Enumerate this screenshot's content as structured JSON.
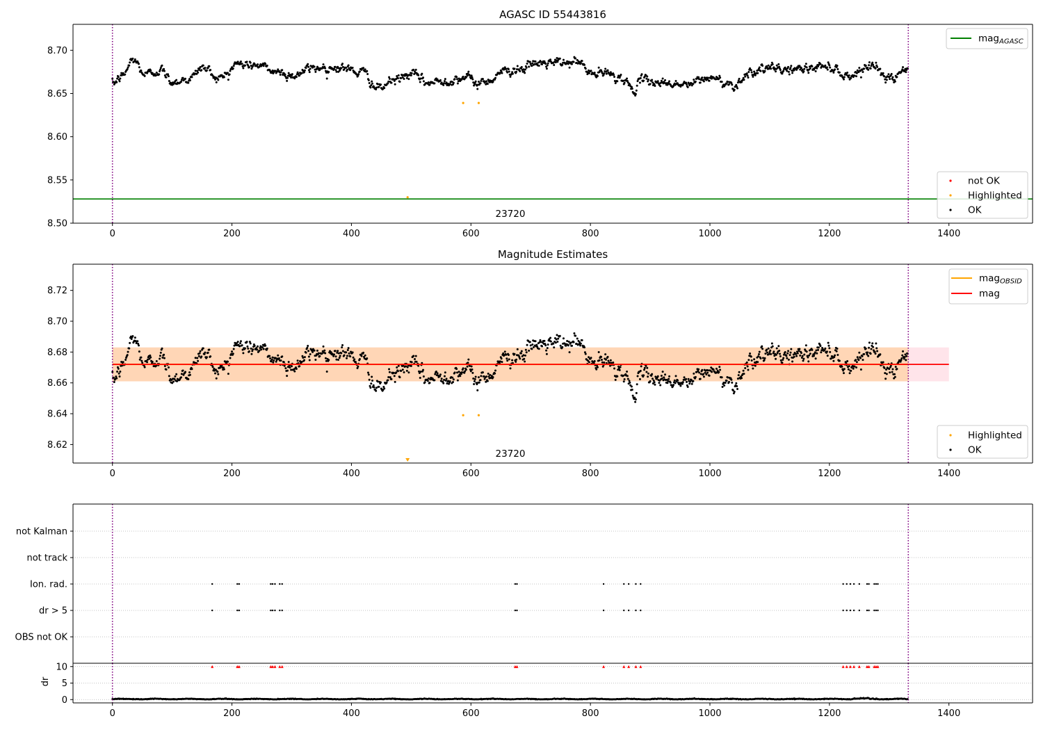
{
  "chart_data": [
    {
      "type": "scatter",
      "title": "AGASC ID 55443816",
      "xlim": [
        -66,
        1540
      ],
      "ylim": [
        8.5,
        8.73
      ],
      "xticks": [
        0,
        200,
        400,
        600,
        800,
        1000,
        1200,
        1400
      ],
      "xtick_labels": [
        "0",
        "200",
        "400",
        "600",
        "800",
        "1000",
        "1200",
        "1400"
      ],
      "yticks": [
        8.5,
        8.55,
        8.6,
        8.65,
        8.7
      ],
      "ytick_labels": [
        "8.50",
        "8.55",
        "8.60",
        "8.65",
        "8.70"
      ],
      "obs_boundaries": [
        0,
        1332
      ],
      "obs_label": {
        "text": "23720",
        "x": 666
      },
      "agasc_mag": 8.528,
      "series": [
        {
          "name": "OK",
          "color": "#000000",
          "n_points": 1332,
          "generator": "ok"
        },
        {
          "name": "Highlighted",
          "color": "#ffa500",
          "points": [
            [
              587,
              8.639
            ],
            [
              613,
              8.639
            ],
            [
              494,
              8.53
            ]
          ]
        },
        {
          "name": "not OK",
          "color": "#ff0000",
          "points": []
        }
      ],
      "legend_lines": [
        {
          "label": "mag",
          "sub": "AGASC",
          "color": "#008000"
        }
      ],
      "legend_points": [
        {
          "label": "not OK",
          "color": "#ff0000"
        },
        {
          "label": "Highlighted",
          "color": "#ffa500"
        },
        {
          "label": "OK",
          "color": "#000000"
        }
      ]
    },
    {
      "type": "scatter",
      "title": "Magnitude Estimates",
      "xlim": [
        -66,
        1540
      ],
      "ylim": [
        8.608,
        8.737
      ],
      "xticks": [
        0,
        200,
        400,
        600,
        800,
        1000,
        1200,
        1400
      ],
      "xtick_labels": [
        "0",
        "200",
        "400",
        "600",
        "800",
        "1000",
        "1200",
        "1400"
      ],
      "yticks": [
        8.62,
        8.64,
        8.66,
        8.68,
        8.7,
        8.72
      ],
      "ytick_labels": [
        "8.62",
        "8.64",
        "8.66",
        "8.68",
        "8.70",
        "8.72"
      ],
      "obs_boundaries": [
        0,
        1332
      ],
      "obs_label": {
        "text": "23720",
        "x": 666
      },
      "mag": 8.672,
      "mag_band": [
        8.661,
        8.683
      ],
      "mag_line_x": [
        0,
        1400
      ],
      "obsid_band_x": [
        0,
        1332
      ],
      "series": [
        {
          "name": "OK",
          "color": "#000000",
          "n_points": 1332,
          "generator": "ok"
        },
        {
          "name": "Highlighted",
          "color": "#ffa500",
          "points": [
            [
              587,
              8.639
            ],
            [
              613,
              8.639
            ]
          ]
        }
      ],
      "offscale_marker": {
        "x": 494,
        "color": "#ffa500"
      },
      "legend_lines": [
        {
          "label": "mag",
          "sub": "OBSID",
          "color": "#ffa500"
        },
        {
          "label": "mag",
          "sub": "",
          "color": "#ff0000"
        }
      ],
      "legend_points": [
        {
          "label": "Highlighted",
          "color": "#ffa500"
        },
        {
          "label": "OK",
          "color": "#000000"
        }
      ]
    },
    {
      "type": "scatter",
      "title": "",
      "xlim": [
        -66,
        1540
      ],
      "categories": [
        "not Kalman",
        "not track",
        "Ion. rad.",
        "dr > 5",
        "OBS not OK"
      ],
      "flag_x": [
        167,
        209,
        212,
        265,
        268,
        272,
        280,
        284,
        674,
        677,
        822,
        856,
        864,
        876,
        884,
        1223,
        1229,
        1235,
        1241,
        1250,
        1263,
        1266,
        1275,
        1278,
        1281
      ],
      "flags": {
        "not Kalman": [],
        "not track": [],
        "Ion. rad.": "flag_x",
        "dr > 5": "flag_x",
        "OBS not OK": []
      }
    },
    {
      "type": "scatter",
      "title": "",
      "xlim": [
        -66,
        1540
      ],
      "ylim": [
        -1,
        11
      ],
      "ylabel": "dr",
      "xticks": [
        0,
        200,
        400,
        600,
        800,
        1000,
        1200,
        1400
      ],
      "xtick_labels": [
        "0",
        "200",
        "400",
        "600",
        "800",
        "1000",
        "1200",
        "1400"
      ],
      "yticks": [
        0,
        5,
        10
      ],
      "ytick_labels": [
        "0",
        "5",
        "10"
      ],
      "clipped_value": 10,
      "series": [
        {
          "name": "dr",
          "color": "#000000",
          "n_points": 1332,
          "generator": "dr"
        },
        {
          "name": "dr > 5 (clipped)",
          "color": "#ff0000",
          "x": "flag_x"
        }
      ]
    }
  ]
}
